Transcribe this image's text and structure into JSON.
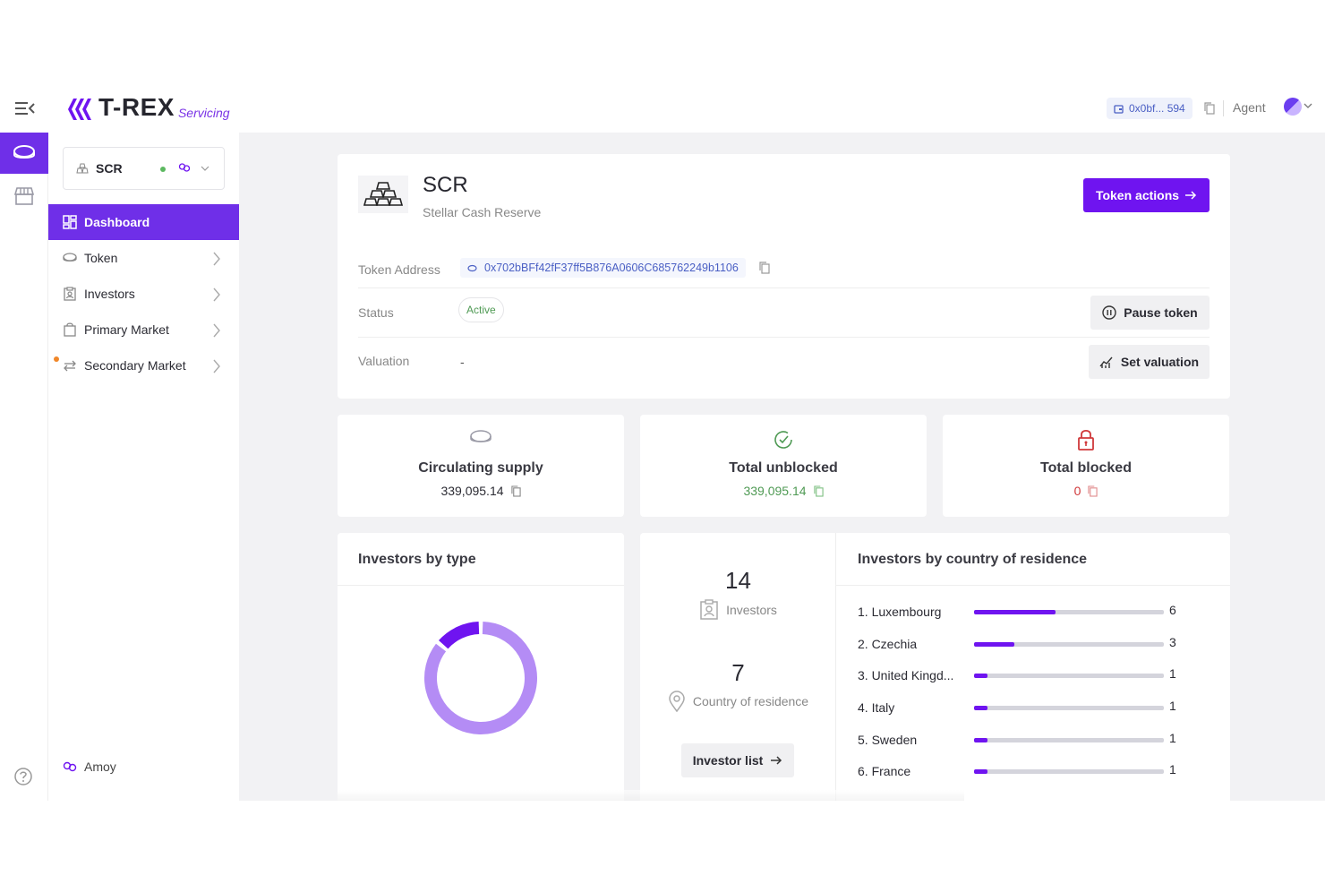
{
  "header": {
    "brand": "T-REX",
    "brand_sub": "Servicing",
    "wallet_address": "0x0bf... 594",
    "role": "Agent"
  },
  "sidebar": {
    "token_symbol": "SCR",
    "items": [
      {
        "label": "Dashboard"
      },
      {
        "label": "Token"
      },
      {
        "label": "Investors"
      },
      {
        "label": "Primary Market"
      },
      {
        "label": "Secondary Market"
      }
    ],
    "network": "Amoy"
  },
  "token": {
    "symbol": "SCR",
    "name": "Stellar Cash Reserve",
    "actions_label": "Token actions",
    "address_label": "Token Address",
    "address": "0x702bBFf42fF37ff5B876A0606C685762249b1106",
    "status_label": "Status",
    "status": "Active",
    "pause_label": "Pause token",
    "valuation_label": "Valuation",
    "valuation": "-",
    "set_valuation_label": "Set valuation"
  },
  "stats": {
    "circulating": {
      "title": "Circulating supply",
      "value": "339,095.14"
    },
    "unblocked": {
      "title": "Total unblocked",
      "value": "339,095.14"
    },
    "blocked": {
      "title": "Total blocked",
      "value": "0"
    }
  },
  "investors_by_type": {
    "title": "Investors by type"
  },
  "summary": {
    "investors_count": "14",
    "investors_label": "Investors",
    "countries_count": "7",
    "countries_label": "Country of residence",
    "list_button": "Investor list"
  },
  "countries": {
    "title": "Investors by country of residence",
    "rows": [
      {
        "name": "1. Luxembourg",
        "count": "6",
        "fraction": 0.43
      },
      {
        "name": "2. Czechia",
        "count": "3",
        "fraction": 0.21
      },
      {
        "name": "3. United Kingd...",
        "count": "1",
        "fraction": 0.07
      },
      {
        "name": "4. Italy",
        "count": "1",
        "fraction": 0.07
      },
      {
        "name": "5. Sweden",
        "count": "1",
        "fraction": 0.07
      },
      {
        "name": "6. France",
        "count": "1",
        "fraction": 0.07
      }
    ]
  },
  "colors": {
    "accent": "#6f14f0",
    "donut_light": "#b48cf5",
    "donut_dark": "#6f14f0",
    "success": "#4f9a54",
    "danger": "#d0393b"
  },
  "donut": {
    "segments": [
      {
        "fraction": 0.86,
        "color": "#b48cf5"
      },
      {
        "fraction": 0.14,
        "color": "#6f14f0"
      }
    ]
  }
}
